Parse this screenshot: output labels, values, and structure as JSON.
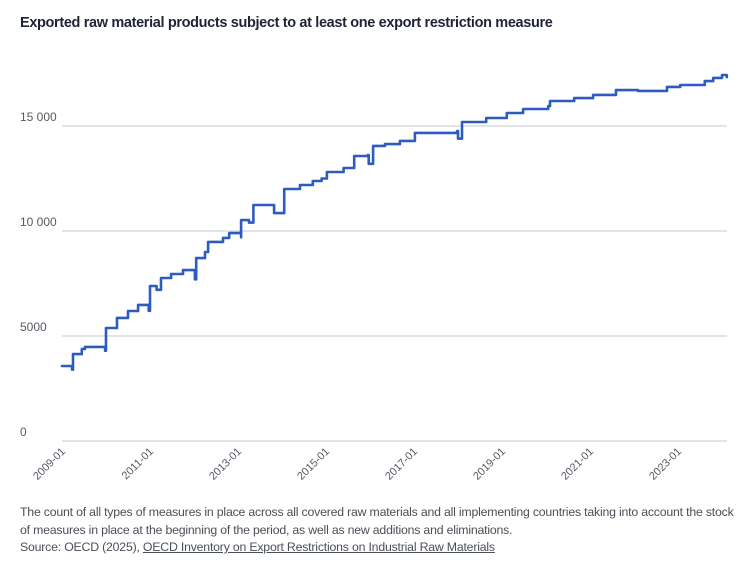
{
  "chart_data": {
    "type": "line",
    "title": "Exported raw material products subject to at least one export restriction measure",
    "xlabel": "",
    "ylabel": "",
    "ylim": [
      0,
      18000
    ],
    "xlim": [
      "2009-01",
      "2024-04"
    ],
    "yticks": [
      0,
      5000,
      10000,
      15000
    ],
    "ytick_labels": [
      "0",
      "5000",
      "10 000",
      "15 000"
    ],
    "xtick_labels": [
      "2009-01",
      "2011-01",
      "2013-01",
      "2015-01",
      "2017-01",
      "2019-01",
      "2021-01",
      "2023-01"
    ],
    "grid": true,
    "legend": "none",
    "step": true,
    "series": [
      {
        "name": "Exported raw material products",
        "color": "#2c5cbf",
        "points": [
          {
            "x": 2009.0,
            "y": 3570
          },
          {
            "x": 2009.2,
            "y": 3570
          },
          {
            "x": 2009.23,
            "y": 3400
          },
          {
            "x": 2009.25,
            "y": 4140
          },
          {
            "x": 2009.45,
            "y": 4380
          },
          {
            "x": 2009.52,
            "y": 4480
          },
          {
            "x": 2009.95,
            "y": 4480
          },
          {
            "x": 2009.98,
            "y": 4300
          },
          {
            "x": 2010.0,
            "y": 5380
          },
          {
            "x": 2010.25,
            "y": 5860
          },
          {
            "x": 2010.5,
            "y": 6190
          },
          {
            "x": 2010.73,
            "y": 6480
          },
          {
            "x": 2010.95,
            "y": 6480
          },
          {
            "x": 2010.97,
            "y": 6200
          },
          {
            "x": 2011.0,
            "y": 7380
          },
          {
            "x": 2011.15,
            "y": 7200
          },
          {
            "x": 2011.25,
            "y": 7760
          },
          {
            "x": 2011.48,
            "y": 7950
          },
          {
            "x": 2011.75,
            "y": 8140
          },
          {
            "x": 2012.0,
            "y": 8140
          },
          {
            "x": 2012.02,
            "y": 7700
          },
          {
            "x": 2012.05,
            "y": 8710
          },
          {
            "x": 2012.25,
            "y": 9000
          },
          {
            "x": 2012.32,
            "y": 9480
          },
          {
            "x": 2012.66,
            "y": 9670
          },
          {
            "x": 2012.8,
            "y": 9900
          },
          {
            "x": 2013.05,
            "y": 9900
          },
          {
            "x": 2013.07,
            "y": 9700
          },
          {
            "x": 2013.07,
            "y": 10520
          },
          {
            "x": 2013.25,
            "y": 10400
          },
          {
            "x": 2013.35,
            "y": 11240
          },
          {
            "x": 2013.8,
            "y": 11240
          },
          {
            "x": 2013.82,
            "y": 10850
          },
          {
            "x": 2014.05,
            "y": 12000
          },
          {
            "x": 2014.41,
            "y": 12190
          },
          {
            "x": 2014.7,
            "y": 12380
          },
          {
            "x": 2014.9,
            "y": 12500
          },
          {
            "x": 2015.02,
            "y": 12810
          },
          {
            "x": 2015.34,
            "y": 12810
          },
          {
            "x": 2015.4,
            "y": 13000
          },
          {
            "x": 2015.64,
            "y": 13570
          },
          {
            "x": 2015.95,
            "y": 13620
          },
          {
            "x": 2015.97,
            "y": 13200
          },
          {
            "x": 2016.07,
            "y": 14050
          },
          {
            "x": 2016.34,
            "y": 14140
          },
          {
            "x": 2016.68,
            "y": 14290
          },
          {
            "x": 2017.02,
            "y": 14670
          },
          {
            "x": 2017.98,
            "y": 14760
          },
          {
            "x": 2018.0,
            "y": 14400
          },
          {
            "x": 2018.09,
            "y": 15190
          },
          {
            "x": 2018.64,
            "y": 15380
          },
          {
            "x": 2019.11,
            "y": 15620
          },
          {
            "x": 2019.48,
            "y": 15810
          },
          {
            "x": 2020.05,
            "y": 15950
          },
          {
            "x": 2020.09,
            "y": 16190
          },
          {
            "x": 2020.64,
            "y": 16330
          },
          {
            "x": 2021.07,
            "y": 16480
          },
          {
            "x": 2021.59,
            "y": 16710
          },
          {
            "x": 2022.09,
            "y": 16670
          },
          {
            "x": 2022.75,
            "y": 16860
          },
          {
            "x": 2023.05,
            "y": 16950
          },
          {
            "x": 2023.61,
            "y": 17140
          },
          {
            "x": 2023.8,
            "y": 17290
          },
          {
            "x": 2024.0,
            "y": 17430
          },
          {
            "x": 2024.11,
            "y": 17330
          }
        ]
      }
    ]
  },
  "note": {
    "description": "The count of all types of measures in place across all covered raw materials and all implementing countries taking into account the stock of measures in place at the beginning of the period, as well as new additions and eliminations.",
    "source_prefix": "Source: OECD (2025), ",
    "source_link": "OECD Inventory on Export Restrictions on Industrial Raw Materials"
  }
}
